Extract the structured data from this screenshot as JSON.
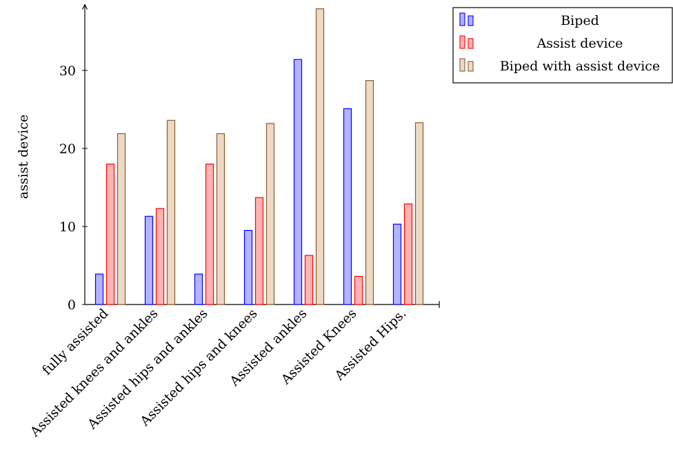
{
  "chart_data": {
    "type": "bar",
    "title": "",
    "xlabel": "",
    "ylabel": "assist device",
    "ylim": [
      0,
      38
    ],
    "yticks": [
      0,
      10,
      20,
      30
    ],
    "grid": false,
    "legend_position": "top-right outside",
    "categories": [
      "fully assisted",
      "Assisted knees and ankles",
      "Assisted hips and ankles",
      "Assisted hips and knees",
      "Assisted ankles",
      "Assisted Knees",
      "Assisted Hips."
    ],
    "series": [
      {
        "name": "Biped",
        "values": [
          3.9,
          11.3,
          3.9,
          9.5,
          31.4,
          25.1,
          10.3
        ],
        "stroke": "#0000ff",
        "fill": "#b3b3ff"
      },
      {
        "name": "Assist device",
        "values": [
          18.0,
          12.3,
          18.0,
          13.7,
          6.3,
          3.6,
          12.9
        ],
        "stroke": "#ff0000",
        "fill": "#ffb3b3"
      },
      {
        "name": "Biped with assist device",
        "values": [
          21.9,
          23.6,
          21.9,
          23.2,
          37.9,
          28.7,
          23.3
        ],
        "stroke": "#8b5a2b",
        "fill": "#ecd9c6"
      }
    ]
  }
}
